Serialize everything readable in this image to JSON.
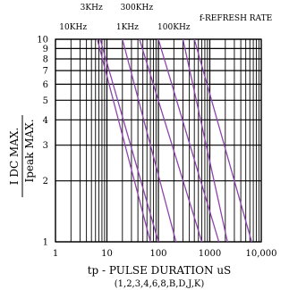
{
  "chart_data": {
    "type": "line",
    "title": "",
    "xlabel": "tp - PULSE DURATION uS",
    "xlabel_sub": "(1,2,3,4,6,8,B,D,J,K)",
    "ylabel": "Ipeak MAX.",
    "ylabel_denominator": "I DC  MAX.",
    "x_scale": "log",
    "y_scale": "log",
    "xlim": [
      1,
      10000
    ],
    "ylim": [
      1,
      10
    ],
    "x_tick_labels": [
      {
        "value": 1,
        "label": "1"
      },
      {
        "value": 10,
        "label": "10"
      },
      {
        "value": 100,
        "label": "100"
      },
      {
        "value": 1000,
        "label": "1000"
      },
      {
        "value": 10000,
        "label": "10,000"
      }
    ],
    "y_tick_labels": [
      {
        "value": 1,
        "label": "1"
      },
      {
        "value": 2,
        "label": "2"
      },
      {
        "value": 3,
        "label": "3"
      },
      {
        "value": 4,
        "label": "4"
      },
      {
        "value": 5,
        "label": "5"
      },
      {
        "value": 6,
        "label": "6"
      },
      {
        "value": 7,
        "label": "7"
      },
      {
        "value": 8,
        "label": "8"
      },
      {
        "value": 9,
        "label": "9"
      },
      {
        "value": 10,
        "label": "10"
      }
    ],
    "grid": true,
    "line_color": "#8e44ad",
    "legend_title": "f-REFRESH RATE",
    "series": [
      {
        "name": "300KHz",
        "x": [
          6.5,
          70
        ],
        "y": [
          10,
          1
        ]
      },
      {
        "name": "3KHz",
        "x": [
          7.4,
          100
        ],
        "y": [
          10,
          1
        ]
      },
      {
        "name": "1KHz",
        "x": [
          20,
          220
        ],
        "y": [
          10,
          1
        ]
      },
      {
        "name": "10KHz",
        "x": [
          43,
          700
        ],
        "y": [
          10,
          1
        ]
      },
      {
        "name": "100KHz",
        "x": [
          100,
          1500
        ],
        "y": [
          10,
          1
        ]
      },
      {
        "name": "",
        "x": [
          300,
          2200
        ],
        "y": [
          10,
          1
        ]
      },
      {
        "name": "",
        "x": [
          500,
          6500
        ],
        "y": [
          10,
          1
        ]
      }
    ],
    "freq_labels": [
      {
        "text": "3KHz",
        "x": 5,
        "y": 14
      },
      {
        "text": "300KHz",
        "x": 38,
        "y": 14
      },
      {
        "text": "10KHz",
        "x": 2.2,
        "y": 11.2
      },
      {
        "text": "1KHz",
        "x": 25,
        "y": 11.2
      },
      {
        "text": "100KHz",
        "x": 200,
        "y": 11.2
      },
      {
        "text": "f-REFRESH RATE",
        "x": 3200,
        "y": 12.4
      }
    ]
  }
}
